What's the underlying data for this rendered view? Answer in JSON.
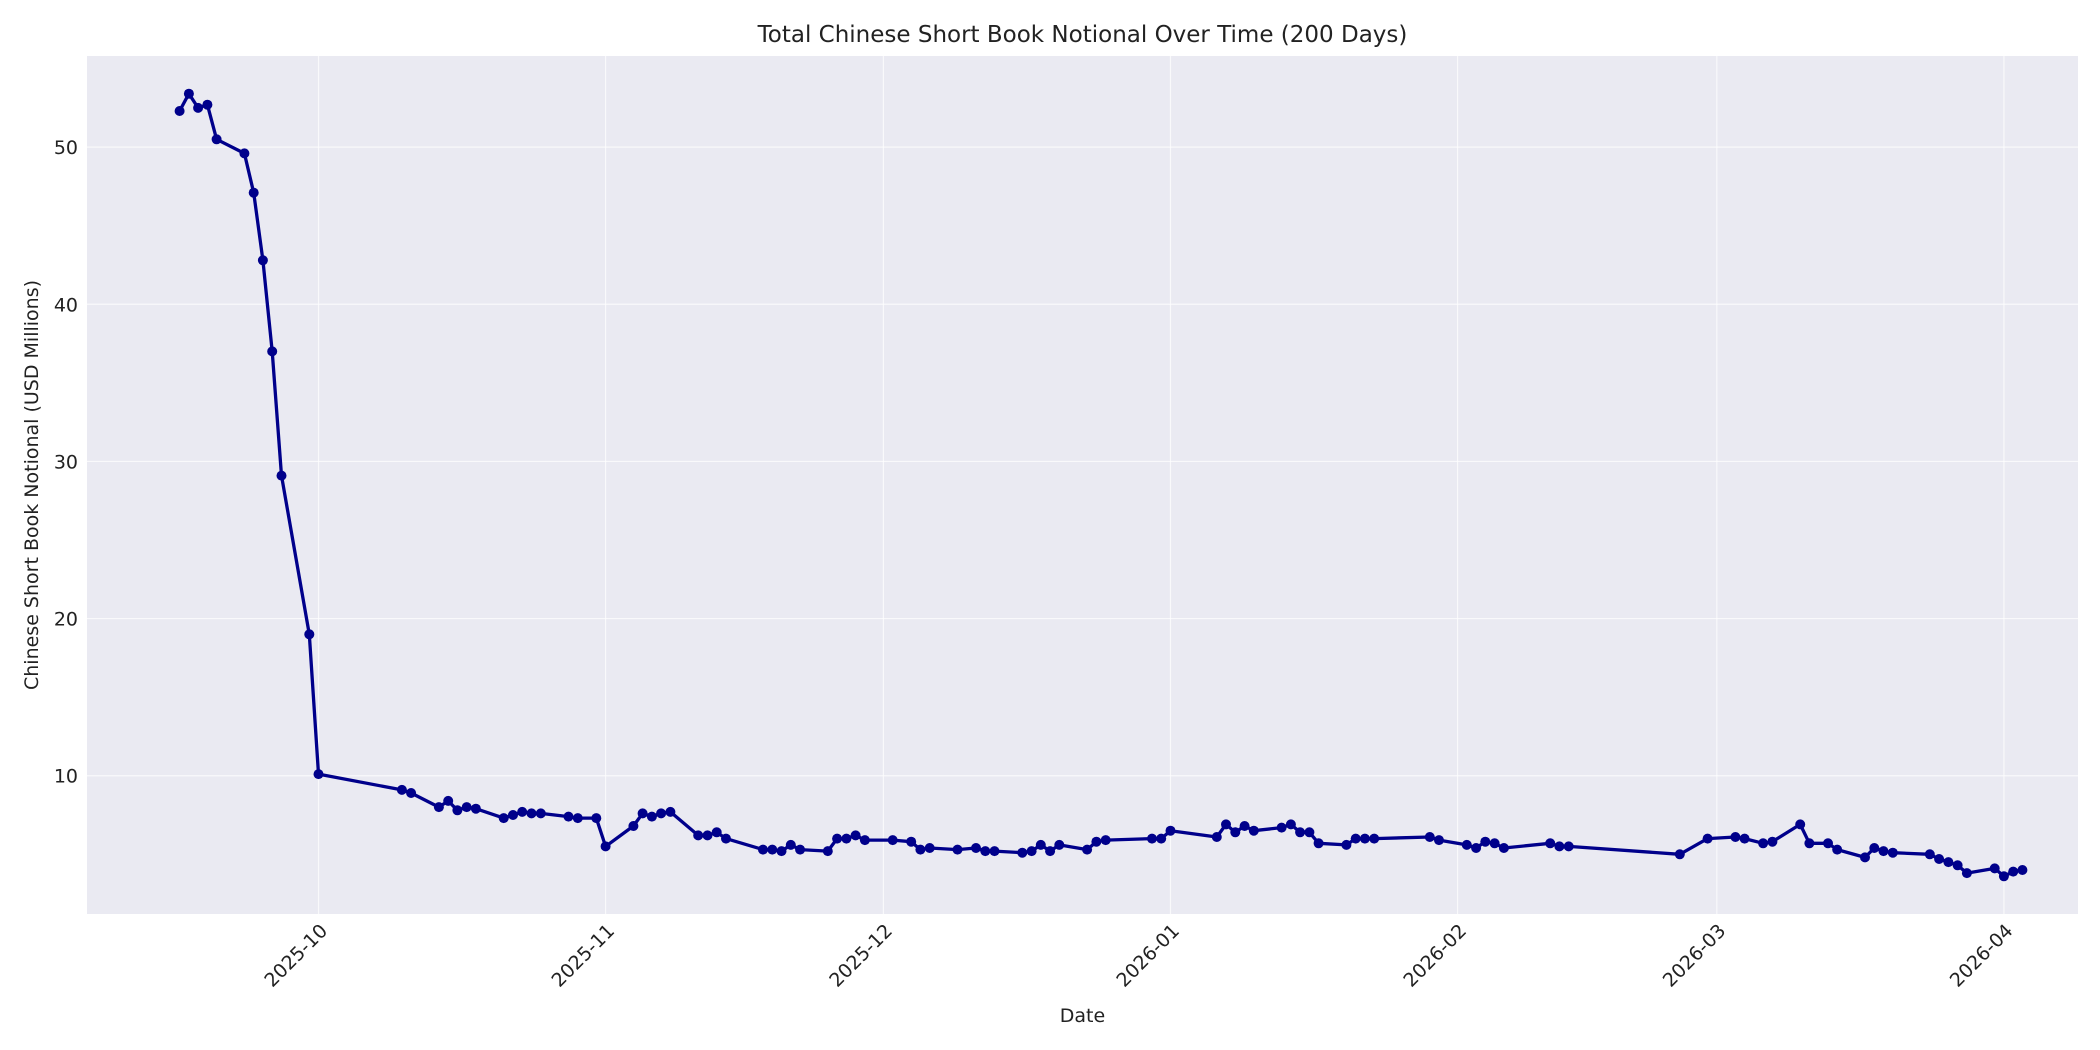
{
  "chart_data": {
    "type": "line",
    "title": "Total Chinese Short Book Notional Over Time (200 Days)",
    "xlabel": "Date",
    "ylabel": "Chinese Short Book Notional (USD Millions)",
    "xlim": [
      "2025-09-06",
      "2026-04-09"
    ],
    "ylim": [
      1.2,
      55.8
    ],
    "x_ticks": [
      "2025-10",
      "2025-11",
      "2025-12",
      "2026-01",
      "2026-02",
      "2026-03",
      "2026-04"
    ],
    "y_ticks": [
      10,
      20,
      30,
      40,
      50
    ],
    "grid": true,
    "legend": "none",
    "line_color": "#00008b",
    "plot_background": "#eaeaf2",
    "series": [
      {
        "x": [
          "2025-09-16",
          "2025-09-17",
          "2025-09-18",
          "2025-09-19",
          "2025-09-20",
          "2025-09-23",
          "2025-09-24",
          "2025-09-25",
          "2025-09-26",
          "2025-09-27",
          "2025-09-30",
          "2025-10-01",
          "2025-10-10",
          "2025-10-11",
          "2025-10-14",
          "2025-10-15",
          "2025-10-16",
          "2025-10-17",
          "2025-10-18",
          "2025-10-21",
          "2025-10-22",
          "2025-10-23",
          "2025-10-24",
          "2025-10-25",
          "2025-10-28",
          "2025-10-29",
          "2025-10-31",
          "2025-11-01",
          "2025-11-04",
          "2025-11-05",
          "2025-11-06",
          "2025-11-07",
          "2025-11-08",
          "2025-11-11",
          "2025-11-12",
          "2025-11-13",
          "2025-11-14",
          "2025-11-18",
          "2025-11-19",
          "2025-11-20",
          "2025-11-21",
          "2025-11-22",
          "2025-11-25",
          "2025-11-26",
          "2025-11-27",
          "2025-11-28",
          "2025-11-29",
          "2025-12-02",
          "2025-12-04",
          "2025-12-05",
          "2025-12-06",
          "2025-12-09",
          "2025-12-11",
          "2025-12-12",
          "2025-12-13",
          "2025-12-16",
          "2025-12-17",
          "2025-12-18",
          "2025-12-19",
          "2025-12-20",
          "2025-12-23",
          "2025-12-24",
          "2025-12-25",
          "2025-12-30",
          "2025-12-31",
          "2026-01-01",
          "2026-01-06",
          "2026-01-07",
          "2026-01-08",
          "2026-01-09",
          "2026-01-10",
          "2026-01-13",
          "2026-01-14",
          "2026-01-15",
          "2026-01-16",
          "2026-01-17",
          "2026-01-20",
          "2026-01-21",
          "2026-01-22",
          "2026-01-23",
          "2026-01-29",
          "2026-01-30",
          "2026-02-02",
          "2026-02-03",
          "2026-02-04",
          "2026-02-05",
          "2026-02-06",
          "2026-02-11",
          "2026-02-12",
          "2026-02-13",
          "2026-02-25",
          "2026-02-28",
          "2026-03-03",
          "2026-03-04",
          "2026-03-06",
          "2026-03-07",
          "2026-03-10",
          "2026-03-11",
          "2026-03-13",
          "2026-03-14",
          "2026-03-17",
          "2026-03-18",
          "2026-03-19",
          "2026-03-20",
          "2026-03-24",
          "2026-03-25",
          "2026-03-26",
          "2026-03-27",
          "2026-03-28",
          "2026-03-31",
          "2026-04-01",
          "2026-04-02",
          "2026-04-03"
        ],
        "y": [
          52.3,
          53.4,
          52.5,
          52.7,
          50.5,
          49.6,
          47.1,
          42.8,
          37.0,
          29.1,
          19.0,
          10.1,
          9.1,
          8.9,
          8.0,
          8.4,
          7.8,
          8.0,
          7.9,
          7.3,
          7.5,
          7.7,
          7.6,
          7.6,
          7.4,
          7.3,
          7.3,
          5.5,
          6.8,
          7.6,
          7.4,
          7.6,
          7.7,
          6.2,
          6.2,
          6.4,
          6.0,
          5.3,
          5.3,
          5.2,
          5.6,
          5.3,
          5.2,
          6.0,
          6.0,
          6.2,
          5.9,
          5.9,
          5.8,
          5.3,
          5.4,
          5.3,
          5.4,
          5.2,
          5.2,
          5.1,
          5.2,
          5.6,
          5.2,
          5.6,
          5.3,
          5.8,
          5.9,
          6.0,
          6.0,
          6.5,
          6.1,
          6.9,
          6.4,
          6.8,
          6.5,
          6.7,
          6.9,
          6.4,
          6.4,
          5.7,
          5.6,
          6.0,
          6.0,
          6.0,
          6.1,
          5.9,
          5.6,
          5.4,
          5.8,
          5.7,
          5.4,
          5.7,
          5.5,
          5.5,
          5.0,
          6.0,
          6.1,
          6.0,
          5.7,
          5.8,
          6.9,
          5.7,
          5.7,
          5.3,
          4.8,
          5.4,
          5.2,
          5.1,
          5.0,
          4.7,
          4.5,
          4.3,
          3.8,
          4.1,
          3.6,
          3.9,
          4.0
        ]
      }
    ]
  }
}
